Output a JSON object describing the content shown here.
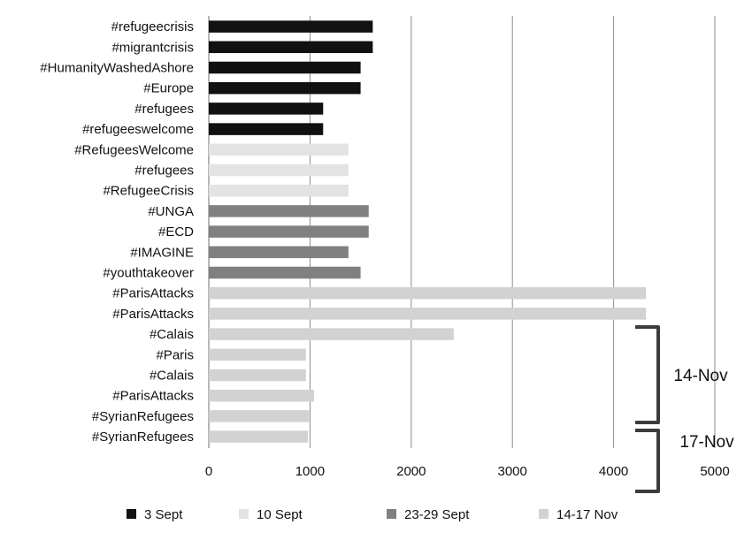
{
  "chart_data": {
    "type": "bar",
    "orientation": "horizontal",
    "categories": [
      "#refugeecrisis",
      "#migrantcrisis",
      "#HumanityWashedAshore",
      "#Europe",
      "#refugees",
      "#refugeeswelcome",
      "#RefugeesWelcome",
      "#refugees",
      "#RefugeeCrisis",
      "#UNGA",
      "#ECD",
      "#IMAGINE",
      "#youthtakeover",
      "#ParisAttacks",
      "#ParisAttacks",
      "#Calais",
      "#Paris",
      "#Calais",
      "#ParisAttacks",
      "#SyrianRefugees",
      "#SyrianRefugees"
    ],
    "values": [
      1620,
      1620,
      1500,
      1500,
      1130,
      1130,
      1380,
      1380,
      1380,
      1580,
      1580,
      1380,
      1500,
      4320,
      4320,
      2420,
      960,
      960,
      1040,
      990,
      980
    ],
    "group_index": [
      0,
      0,
      0,
      0,
      0,
      0,
      1,
      1,
      1,
      2,
      2,
      2,
      2,
      3,
      3,
      3,
      3,
      3,
      3,
      3,
      3
    ],
    "series": [
      {
        "name": "3 Sept",
        "color": "#111111"
      },
      {
        "name": "10 Sept",
        "color": "#e3e3e3"
      },
      {
        "name": "23-29 Sept",
        "color": "#808080"
      },
      {
        "name": "14-17 Nov",
        "color": "#d2d2d2"
      }
    ],
    "xticks": [
      "0",
      "1000",
      "2000",
      "3000",
      "4000",
      "5000"
    ],
    "xlim": [
      0,
      5000
    ],
    "grid": "vertical",
    "legend_position": "bottom",
    "annotations": [
      {
        "text": "14-Nov",
        "bracket": "right",
        "first_category": 15,
        "last_category": 19
      },
      {
        "text": "17-Nov",
        "bracket": "right",
        "first_category": 20,
        "last_category": 20
      }
    ],
    "title": "",
    "xlabel": "",
    "ylabel": ""
  }
}
